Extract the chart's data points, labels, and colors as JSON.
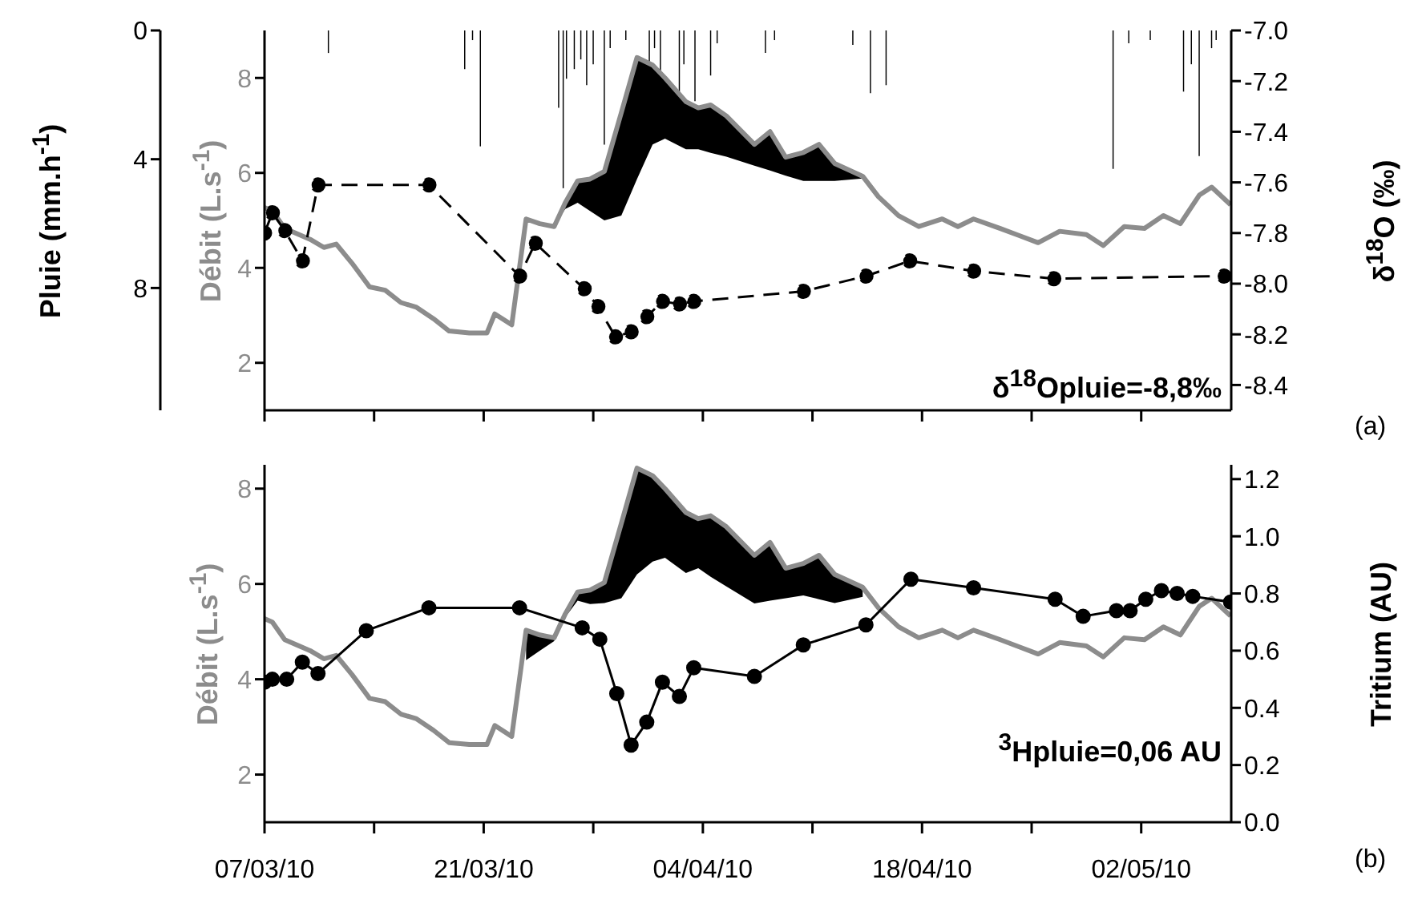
{
  "chart_data": [
    {
      "type": "line",
      "ylabel": "Débit (L.s$^{-1}$)",
      "y2label": "δ$^{18}$O (‰)",
      "y3label": "Pluie (mm.h$^{-1}$)",
      "annotations": [
        "δ$^{18}$Opluie=-8,8‰",
        "(a)"
      ],
      "xlim": [
        "--03-07",
        "--05-07T18:00"
      ],
      "tick_labels": "y",
      "xticks": [
        {
          "value": "--03-07",
          "label": "07/03/10"
        },
        {
          "value": "--03-14",
          "label": null
        },
        {
          "value": "--03-21",
          "label": "21/03/10"
        },
        {
          "value": "--03-28",
          "label": null
        },
        {
          "value": "--04-04",
          "label": "04/04/10"
        },
        {
          "value": "--04-11",
          "label": null
        },
        {
          "value": "--04-18",
          "label": "18/04/10"
        },
        {
          "value": "--04-25",
          "label": null
        },
        {
          "value": "--05-02",
          "label": "02/05/10"
        }
      ],
      "ylim": [
        1,
        9
      ],
      "yticks": [
        2,
        4,
        6,
        8
      ],
      "y2lim": [
        -8.5,
        -7.0
      ],
      "y2ticks": [
        {
          "value": -7,
          "label": "-7.0"
        },
        -7.2,
        -7.4,
        -7.6,
        -7.8,
        {
          "value": -8,
          "label": "-8.0"
        },
        -8.2,
        -8.4
      ],
      "y3lim": [
        11.8,
        0
      ],
      "y3ticks": [
        0,
        4,
        8
      ],
      "series": [
        {
          "type": "bar",
          "axis": "y3",
          "color": "#000000",
          "x": [
            "--03-11T02:00",
            "--03-19T19:00",
            "--03-20T07:00",
            "--03-20T19:00",
            "--03-25T19:00",
            "--03-26T02:00",
            "--03-26T07:00",
            "--03-26T19:00",
            "--03-27T05:00",
            "--03-27T14:00",
            "--03-28T00:00",
            "--03-28T17:00",
            "--03-29T02:00",
            "--03-30T02:00",
            "--03-31T14:00",
            "--03-31T22:00",
            "--04-01T07:00",
            "--04-02T12:00",
            "--04-02T19:00",
            "--04-03T12:00",
            "--04-04T12:00",
            "--04-04T22:00",
            "--04-08T00:00",
            "--04-08T14:00",
            "--04-13T14:00",
            "--04-14T17:00",
            "--04-15T17:00",
            "--04-30T05:00",
            "--05-01T05:00",
            "--05-02T14:00",
            "--05-04T17:00",
            "--05-05T05:00",
            "--05-05T17:00",
            "--05-06T12:00",
            "--05-06T19:00"
          ],
          "values": [
            0.7,
            1.2,
            0.3,
            3.6,
            2.4,
            4.9,
            1.5,
            1.2,
            0.9,
            1.7,
            1.05,
            3.55,
            0.55,
            0.3,
            1.05,
            0.55,
            1.4,
            1.9,
            1.05,
            2.2,
            1.4,
            0.4,
            0.7,
            0.3,
            0.45,
            1.95,
            1.7,
            4.3,
            0.4,
            0.3,
            1.9,
            1.05,
            3.9,
            0.55,
            0.3
          ]
        },
        {
          "color": "#8c8c8c",
          "lower": [
            null,
            null,
            null,
            null,
            null,
            null,
            null,
            null,
            null,
            null,
            null,
            null,
            null,
            null,
            null,
            null,
            null,
            null,
            null,
            4.93,
            4.87,
            5.24,
            5.37,
            5.2,
            5.0,
            5.1,
            5.87,
            6.6,
            6.72,
            6.5,
            6.5,
            6.42,
            6.34,
            6.15,
            6.05,
            5.94,
            5.83,
            5.83,
            5.83,
            5.88,
            null,
            null,
            null,
            null,
            null,
            null,
            null,
            null,
            null,
            null,
            null,
            null,
            null,
            null,
            null,
            null,
            null,
            null
          ],
          "upper": [
            null,
            null,
            null,
            null,
            null,
            null,
            null,
            null,
            null,
            null,
            null,
            null,
            null,
            null,
            null,
            null,
            null,
            null,
            null,
            4.93,
            4.87,
            5.37,
            5.83,
            5.87,
            6.03,
            7.27,
            8.43,
            8.27,
            8.0,
            7.5,
            7.37,
            7.43,
            7.2,
            6.6,
            6.87,
            6.33,
            6.43,
            6.6,
            6.2,
            5.93,
            null,
            null,
            null,
            null,
            null,
            null,
            null,
            null,
            null,
            null,
            null,
            null,
            null,
            null,
            null,
            null,
            null,
            null
          ],
          "marker": "none",
          "line_style": "solid",
          "x": [
            "--03-07T00:00",
            "--03-07T12:00",
            "--03-08T07:00",
            "--03-09T05:00",
            "--03-09T22:00",
            "--03-10T19:00",
            "--03-11T14:00",
            "--03-12T14:00",
            "--03-13T17:00",
            "--03-14T17:00",
            "--03-15T17:00",
            "--03-16T17:00",
            "--03-17T19:00",
            "--03-18T19:00",
            "--03-20T02:00",
            "--03-21T05:00",
            "--03-21T17:00",
            "--03-22T19:00",
            "--03-23T17:00",
            "--03-24T14:00",
            "--03-25T12:00",
            "--03-26T05:00",
            "--03-27T00:00",
            "--03-27T19:00",
            "--03-28T17:00",
            "--03-29T19:00",
            "--03-30T19:00",
            "--03-31T19:00",
            "--04-01T14:00",
            "--04-02T22:00",
            "--04-03T17:00",
            "--04-04T12:00",
            "--04-05T12:00",
            "--04-07T07:00",
            "--04-08T07:00",
            "--04-09T07:00",
            "--04-10T10:00",
            "--04-11T10:00",
            "--04-12T10:00",
            "--04-14T05:00",
            "--04-15T05:00",
            "--04-16T12:00",
            "--04-17T19:00",
            "--04-19T07:00",
            "--04-20T07:00",
            "--04-21T07:00",
            "--04-23T00:00",
            "--04-25T10:00",
            "--04-26T19:00",
            "--04-28T12:00",
            "--04-29T14:00",
            "--04-30T22:00",
            "--05-02T05:00",
            "--05-03T10:00",
            "--05-04T12:00",
            "--05-05T17:00",
            "--05-06T12:00",
            "--05-07T17:00"
          ],
          "values": [
            5.27,
            5.2,
            4.83,
            4.7,
            4.6,
            4.43,
            4.5,
            4.1,
            3.6,
            3.53,
            3.27,
            3.17,
            2.93,
            2.67,
            2.63,
            2.63,
            3.03,
            2.8,
            5.03,
            4.93,
            4.87,
            5.37,
            5.83,
            5.87,
            6.03,
            7.27,
            8.43,
            8.27,
            8.0,
            7.5,
            7.37,
            7.43,
            7.2,
            6.6,
            6.87,
            6.33,
            6.43,
            6.6,
            6.2,
            5.93,
            5.5,
            5.1,
            4.87,
            5.03,
            4.87,
            5.03,
            4.83,
            4.53,
            4.77,
            4.7,
            4.47,
            4.87,
            4.83,
            5.1,
            4.93,
            5.53,
            5.7,
            5.33
          ]
        },
        {
          "axis": "y2",
          "color": "#000000",
          "marker": "circle",
          "line_style": "dashed",
          "x": [
            "--03-07T00:00",
            "--03-07T12:00",
            "--03-08T07:00",
            "--03-09T10:00",
            "--03-10T10:00",
            "--03-17T12:00",
            "--03-23T07:00",
            "--03-24T07:00",
            "--03-27T10:00",
            "--03-28T07:00",
            "--03-29T10:00",
            "--03-30T10:00",
            "--03-31T10:00",
            "--04-01T10:00",
            "--04-02T12:00",
            "--04-03T10:00",
            "--04-10T10:00",
            "--04-14T10:00",
            "--04-17T05:00",
            "--04-21T07:00",
            "--04-26T10:00",
            "--05-07T07:00"
          ],
          "values": [
            -7.8,
            -7.72,
            -7.79,
            -7.91,
            -7.61,
            -7.61,
            -7.97,
            -7.84,
            -8.02,
            -8.09,
            -8.21,
            -8.19,
            -8.13,
            -8.07,
            -8.08,
            -8.07,
            -8.03,
            -7.97,
            -7.91,
            -7.95,
            -7.98,
            -7.97
          ]
        }
      ]
    },
    {
      "type": "line",
      "ylabel": "Débit (L.s$^{-1}$)",
      "y2label": "Tritium (AU)",
      "annotations": [
        "$^{3}$Hpluie=0,06 AU",
        "(b)"
      ],
      "xlim": [
        "--03-07",
        "--05-07T18:00"
      ],
      "xticks": [
        {
          "value": "--03-07",
          "label": "07/03/10"
        },
        {
          "value": "--03-14",
          "label": null
        },
        {
          "value": "--03-21",
          "label": "21/03/10"
        },
        {
          "value": "--03-28",
          "label": null
        },
        {
          "value": "--04-04",
          "label": "04/04/10"
        },
        {
          "value": "--04-11",
          "label": null
        },
        {
          "value": "--04-18",
          "label": "18/04/10"
        },
        {
          "value": "--04-25",
          "label": null
        },
        {
          "value": "--05-02",
          "label": "02/05/10"
        }
      ],
      "ylim": [
        1,
        8.5
      ],
      "yticks": [
        2,
        4,
        6,
        8
      ],
      "y2lim": [
        0,
        1.25
      ],
      "y2ticks": [
        {
          "value": 0,
          "label": "0.0"
        },
        0.2,
        0.4,
        0.6,
        0.8,
        {
          "value": 1,
          "label": "1.0"
        },
        1.2
      ],
      "series": [
        {
          "color": "#8c8c8c",
          "lower": [
            null,
            null,
            null,
            null,
            null,
            null,
            null,
            null,
            null,
            null,
            null,
            null,
            null,
            null,
            null,
            null,
            null,
            null,
            4.4,
            4.6,
            4.8,
            5.3,
            5.65,
            5.58,
            5.6,
            5.7,
            6.2,
            6.47,
            6.55,
            6.23,
            6.33,
            6.15,
            5.95,
            5.59,
            5.65,
            5.7,
            5.76,
            5.68,
            5.6,
            5.73,
            null,
            null,
            null,
            null,
            null,
            null,
            null,
            null,
            null,
            null,
            null,
            null,
            null,
            null,
            null,
            null,
            null,
            null
          ],
          "upper": [
            null,
            null,
            null,
            null,
            null,
            null,
            null,
            null,
            null,
            null,
            null,
            null,
            null,
            null,
            null,
            null,
            null,
            null,
            5.03,
            4.93,
            4.87,
            5.37,
            5.83,
            5.87,
            6.03,
            7.27,
            8.43,
            8.27,
            8.0,
            7.5,
            7.37,
            7.43,
            7.2,
            6.6,
            6.87,
            6.33,
            6.43,
            6.6,
            6.2,
            5.93,
            null,
            null,
            null,
            null,
            null,
            null,
            null,
            null,
            null,
            null,
            null,
            null,
            null,
            null,
            null,
            null,
            null,
            null
          ],
          "marker": "none",
          "line_style": "solid",
          "x": [
            "--03-07T00:00",
            "--03-07T12:00",
            "--03-08T07:00",
            "--03-09T05:00",
            "--03-09T22:00",
            "--03-10T19:00",
            "--03-11T14:00",
            "--03-12T14:00",
            "--03-13T17:00",
            "--03-14T17:00",
            "--03-15T17:00",
            "--03-16T17:00",
            "--03-17T19:00",
            "--03-18T19:00",
            "--03-20T02:00",
            "--03-21T05:00",
            "--03-21T17:00",
            "--03-22T19:00",
            "--03-23T17:00",
            "--03-24T14:00",
            "--03-25T12:00",
            "--03-26T05:00",
            "--03-27T00:00",
            "--03-27T19:00",
            "--03-28T17:00",
            "--03-29T19:00",
            "--03-30T19:00",
            "--03-31T19:00",
            "--04-01T14:00",
            "--04-02T22:00",
            "--04-03T17:00",
            "--04-04T12:00",
            "--04-05T12:00",
            "--04-07T07:00",
            "--04-08T07:00",
            "--04-09T07:00",
            "--04-10T10:00",
            "--04-11T10:00",
            "--04-12T10:00",
            "--04-14T05:00",
            "--04-15T05:00",
            "--04-16T12:00",
            "--04-17T19:00",
            "--04-19T07:00",
            "--04-20T07:00",
            "--04-21T07:00",
            "--04-23T00:00",
            "--04-25T10:00",
            "--04-26T19:00",
            "--04-28T12:00",
            "--04-29T14:00",
            "--04-30T22:00",
            "--05-02T05:00",
            "--05-03T10:00",
            "--05-04T12:00",
            "--05-05T17:00",
            "--05-06T12:00",
            "--05-07T17:00"
          ],
          "values": [
            5.27,
            5.2,
            4.83,
            4.7,
            4.6,
            4.43,
            4.5,
            4.1,
            3.6,
            3.53,
            3.27,
            3.17,
            2.93,
            2.67,
            2.63,
            2.63,
            3.03,
            2.8,
            5.03,
            4.93,
            4.87,
            5.37,
            5.83,
            5.87,
            6.03,
            7.27,
            8.43,
            8.27,
            8.0,
            7.5,
            7.37,
            7.43,
            7.2,
            6.6,
            6.87,
            6.33,
            6.43,
            6.6,
            6.2,
            5.93,
            5.5,
            5.1,
            4.87,
            5.03,
            4.87,
            5.03,
            4.83,
            4.53,
            4.77,
            4.7,
            4.47,
            4.87,
            4.83,
            5.1,
            4.93,
            5.53,
            5.7,
            5.33
          ]
        },
        {
          "axis": "y2",
          "color": "#000000",
          "marker": "circle",
          "line_style": "solid",
          "x": [
            "--03-07T00:00",
            "--03-07T12:00",
            "--03-08T10:00",
            "--03-09T10:00",
            "--03-10T10:00",
            "--03-13T12:00",
            "--03-17T12:00",
            "--03-23T07:00",
            "--03-24T10:00",
            "--03-27T07:00",
            "--03-28T10:00",
            "--03-29T12:00",
            "--03-30T10:00",
            "--03-31T10:00",
            "--04-01T10:00",
            "--04-02T12:00",
            "--04-03T10:00",
            "--04-07T07:00",
            "--04-10T10:00",
            "--04-14T10:00",
            "--04-17T07:00",
            "--04-21T07:00",
            "--04-26T12:00",
            "--04-28T07:00",
            "--04-30T10:00",
            "--05-01T07:00",
            "--05-02T07:00",
            "--05-03T07:00",
            "--05-04T07:00",
            "--05-05T07:00",
            "--05-07T17:00"
          ],
          "values": [
            0.49,
            0.5,
            0.5,
            0.56,
            0.52,
            0.67,
            0.75,
            0.75,
            null,
            0.68,
            0.64,
            0.45,
            0.27,
            0.35,
            0.49,
            0.44,
            0.54,
            0.51,
            0.62,
            0.69,
            0.85,
            0.82,
            0.78,
            0.72,
            0.74,
            0.74,
            0.78,
            0.81,
            0.8,
            0.79,
            0.77
          ]
        }
      ]
    }
  ]
}
